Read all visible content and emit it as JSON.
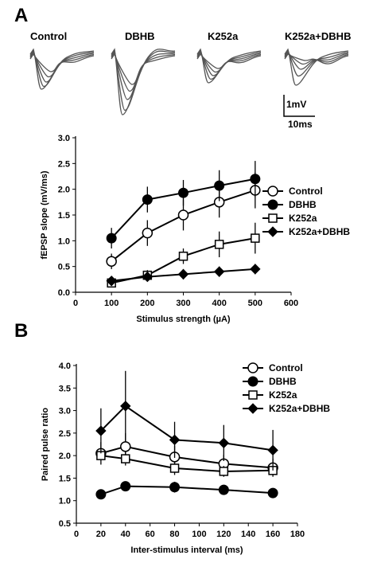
{
  "panel_a": {
    "letter": "A",
    "traces": [
      {
        "label": "Control"
      },
      {
        "label": "DBHB"
      },
      {
        "label": "K252a"
      },
      {
        "label": "K252a+DBHB"
      }
    ],
    "scale_bar": {
      "y_label": "1mV",
      "x_label": "10ms"
    }
  },
  "panel_b": {
    "letter": "B"
  },
  "chart_data": [
    {
      "type": "line",
      "title": "",
      "xlabel": "Stimulus strength (µA)",
      "ylabel": "fEPSP slope (mV/ms)",
      "xlim": [
        0,
        600
      ],
      "ylim": [
        0,
        3.0
      ],
      "xticks": [
        "0",
        "100",
        "200",
        "300",
        "400",
        "500",
        "600"
      ],
      "yticks": [
        "0.0",
        "0.5",
        "1.0",
        "1.5",
        "2.0",
        "2.5",
        "3.0"
      ],
      "x": [
        100,
        200,
        300,
        400,
        500
      ],
      "legend_position": "right",
      "series": [
        {
          "name": "Control",
          "marker": "circle-open",
          "values": [
            0.6,
            1.15,
            1.5,
            1.75,
            1.98
          ],
          "errors": [
            0.15,
            0.25,
            0.3,
            0.3,
            0.35
          ]
        },
        {
          "name": "DBHB",
          "marker": "circle-filled",
          "values": [
            1.05,
            1.8,
            1.93,
            2.07,
            2.2
          ],
          "errors": [
            0.2,
            0.25,
            0.25,
            0.3,
            0.35
          ]
        },
        {
          "name": "K252a",
          "marker": "square-open",
          "values": [
            0.18,
            0.33,
            0.7,
            0.93,
            1.05
          ],
          "errors": [
            0.05,
            0.1,
            0.15,
            0.25,
            0.3
          ]
        },
        {
          "name": "K252a+DBHB",
          "marker": "diamond-filled",
          "values": [
            0.22,
            0.3,
            0.35,
            0.4,
            0.45
          ],
          "errors": [
            0.05,
            0.08,
            0.1,
            0.1,
            0.1
          ]
        }
      ]
    },
    {
      "type": "line",
      "title": "",
      "xlabel": "Inter-stimulus interval (ms)",
      "ylabel": "Paired pulse ratio",
      "xlim": [
        0,
        180
      ],
      "ylim": [
        0.5,
        4.0
      ],
      "xticks": [
        "0",
        "20",
        "40",
        "60",
        "80",
        "100",
        "120",
        "140",
        "160",
        "180"
      ],
      "yticks": [
        "0.5",
        "1.0",
        "1.5",
        "2.0",
        "2.5",
        "3.0",
        "3.5",
        "4.0"
      ],
      "x": [
        20,
        40,
        80,
        120,
        160
      ],
      "legend_position": "top-right",
      "series": [
        {
          "name": "Control",
          "marker": "circle-open",
          "values": [
            2.05,
            2.2,
            1.97,
            1.82,
            1.73
          ],
          "errors": [
            0.25,
            0.3,
            0.25,
            0.2,
            0.2
          ]
        },
        {
          "name": "DBHB",
          "marker": "circle-filled",
          "values": [
            1.14,
            1.32,
            1.3,
            1.24,
            1.17
          ],
          "errors": [
            0.05,
            0.1,
            0.12,
            0.08,
            0.05
          ]
        },
        {
          "name": "K252a",
          "marker": "square-open",
          "values": [
            2.0,
            1.93,
            1.72,
            1.65,
            1.67
          ],
          "errors": [
            0.1,
            0.15,
            0.15,
            0.12,
            0.1
          ]
        },
        {
          "name": "K252a+DBHB",
          "marker": "diamond-filled",
          "values": [
            2.55,
            3.1,
            2.35,
            2.28,
            2.12
          ],
          "errors": [
            0.5,
            0.78,
            0.4,
            0.4,
            0.45
          ]
        }
      ]
    }
  ]
}
